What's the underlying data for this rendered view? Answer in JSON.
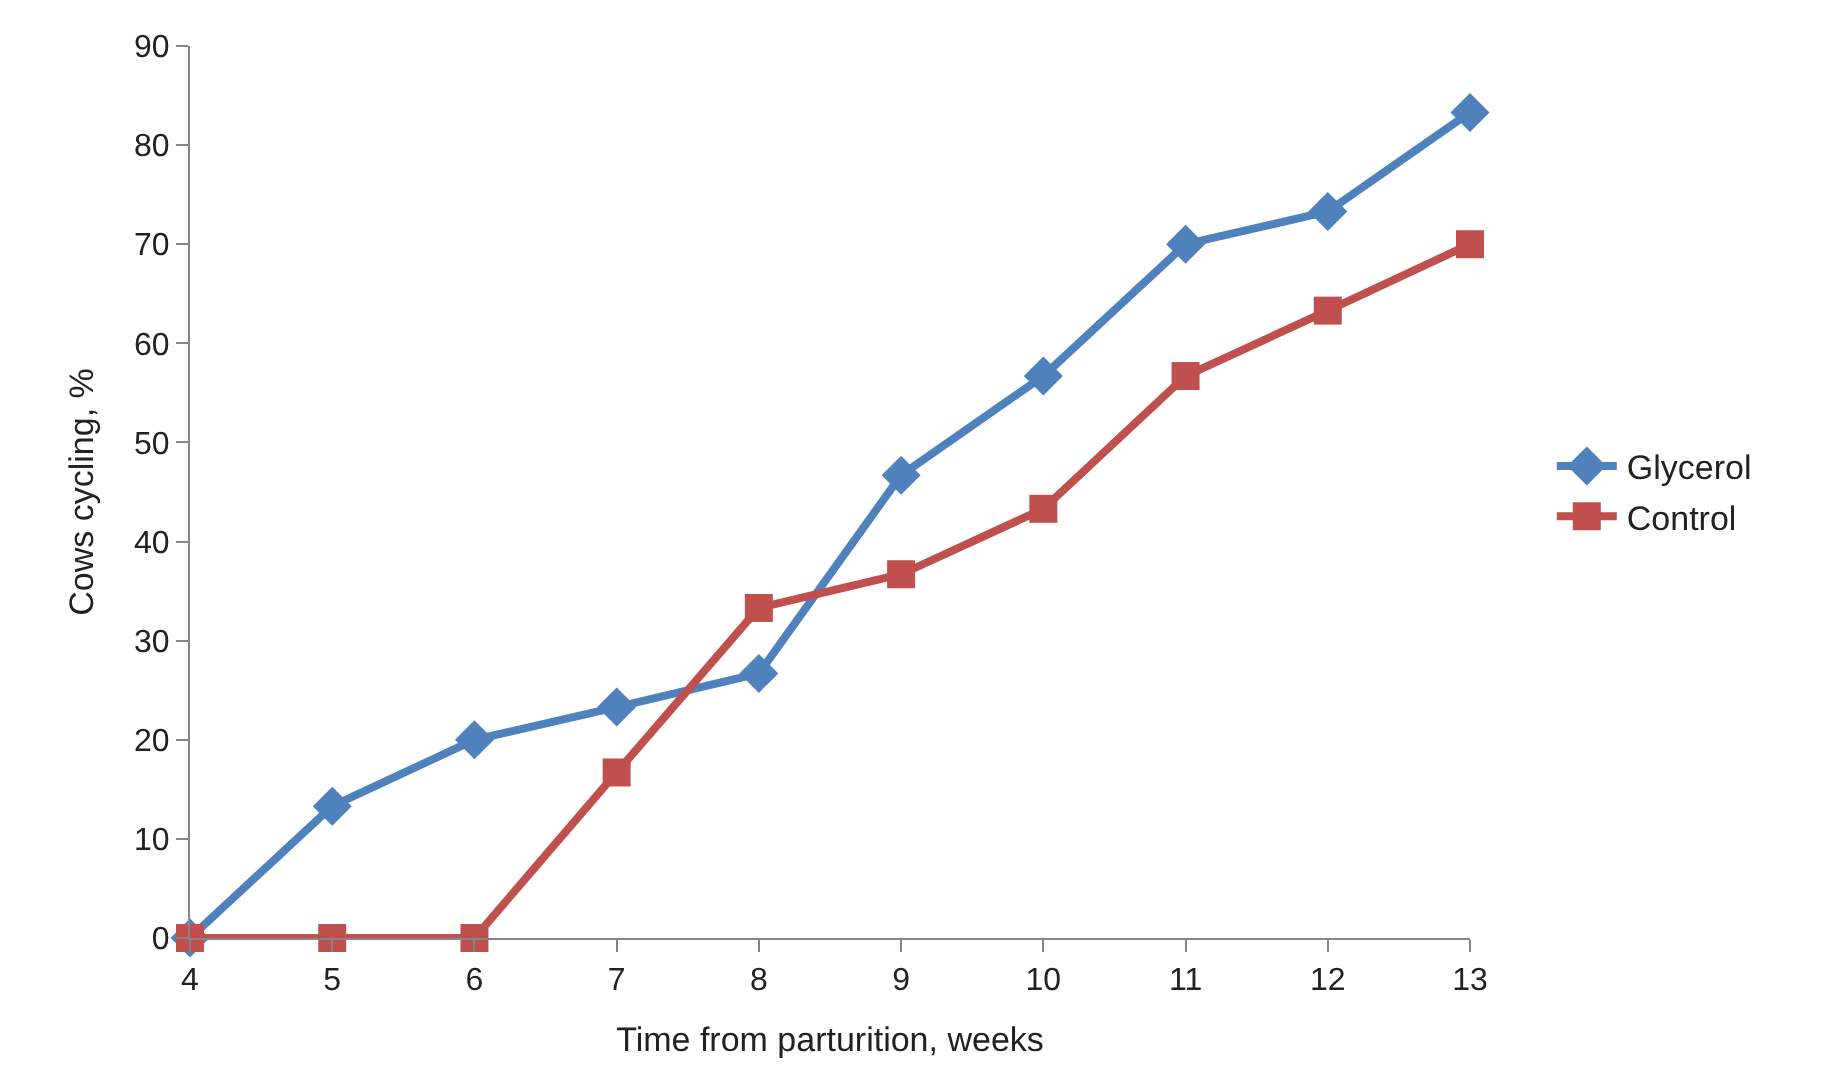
{
  "chart_data": {
    "type": "line",
    "xlabel": "Time from parturition, weeks",
    "ylabel": "Cows cycling, %",
    "x": [
      4,
      5,
      6,
      7,
      8,
      9,
      10,
      11,
      12,
      13
    ],
    "series": [
      {
        "name": "Glycerol",
        "color": "#4f81bd",
        "marker": "diamond",
        "values": [
          0,
          13.3,
          20,
          23.3,
          26.7,
          46.7,
          56.7,
          70,
          73.3,
          83.3
        ]
      },
      {
        "name": "Control",
        "color": "#c0504d",
        "marker": "square",
        "values": [
          0,
          0,
          0,
          16.7,
          33.3,
          36.7,
          43.3,
          56.7,
          63.3,
          70
        ]
      }
    ],
    "xlim": [
      4,
      13
    ],
    "xticks": [
      4,
      5,
      6,
      7,
      8,
      9,
      10,
      11,
      12,
      13
    ],
    "ylim": [
      0,
      90
    ],
    "yticks": [
      0,
      10,
      20,
      30,
      40,
      50,
      60,
      70,
      80,
      90
    ],
    "legend": "right",
    "line_style": "solid"
  }
}
